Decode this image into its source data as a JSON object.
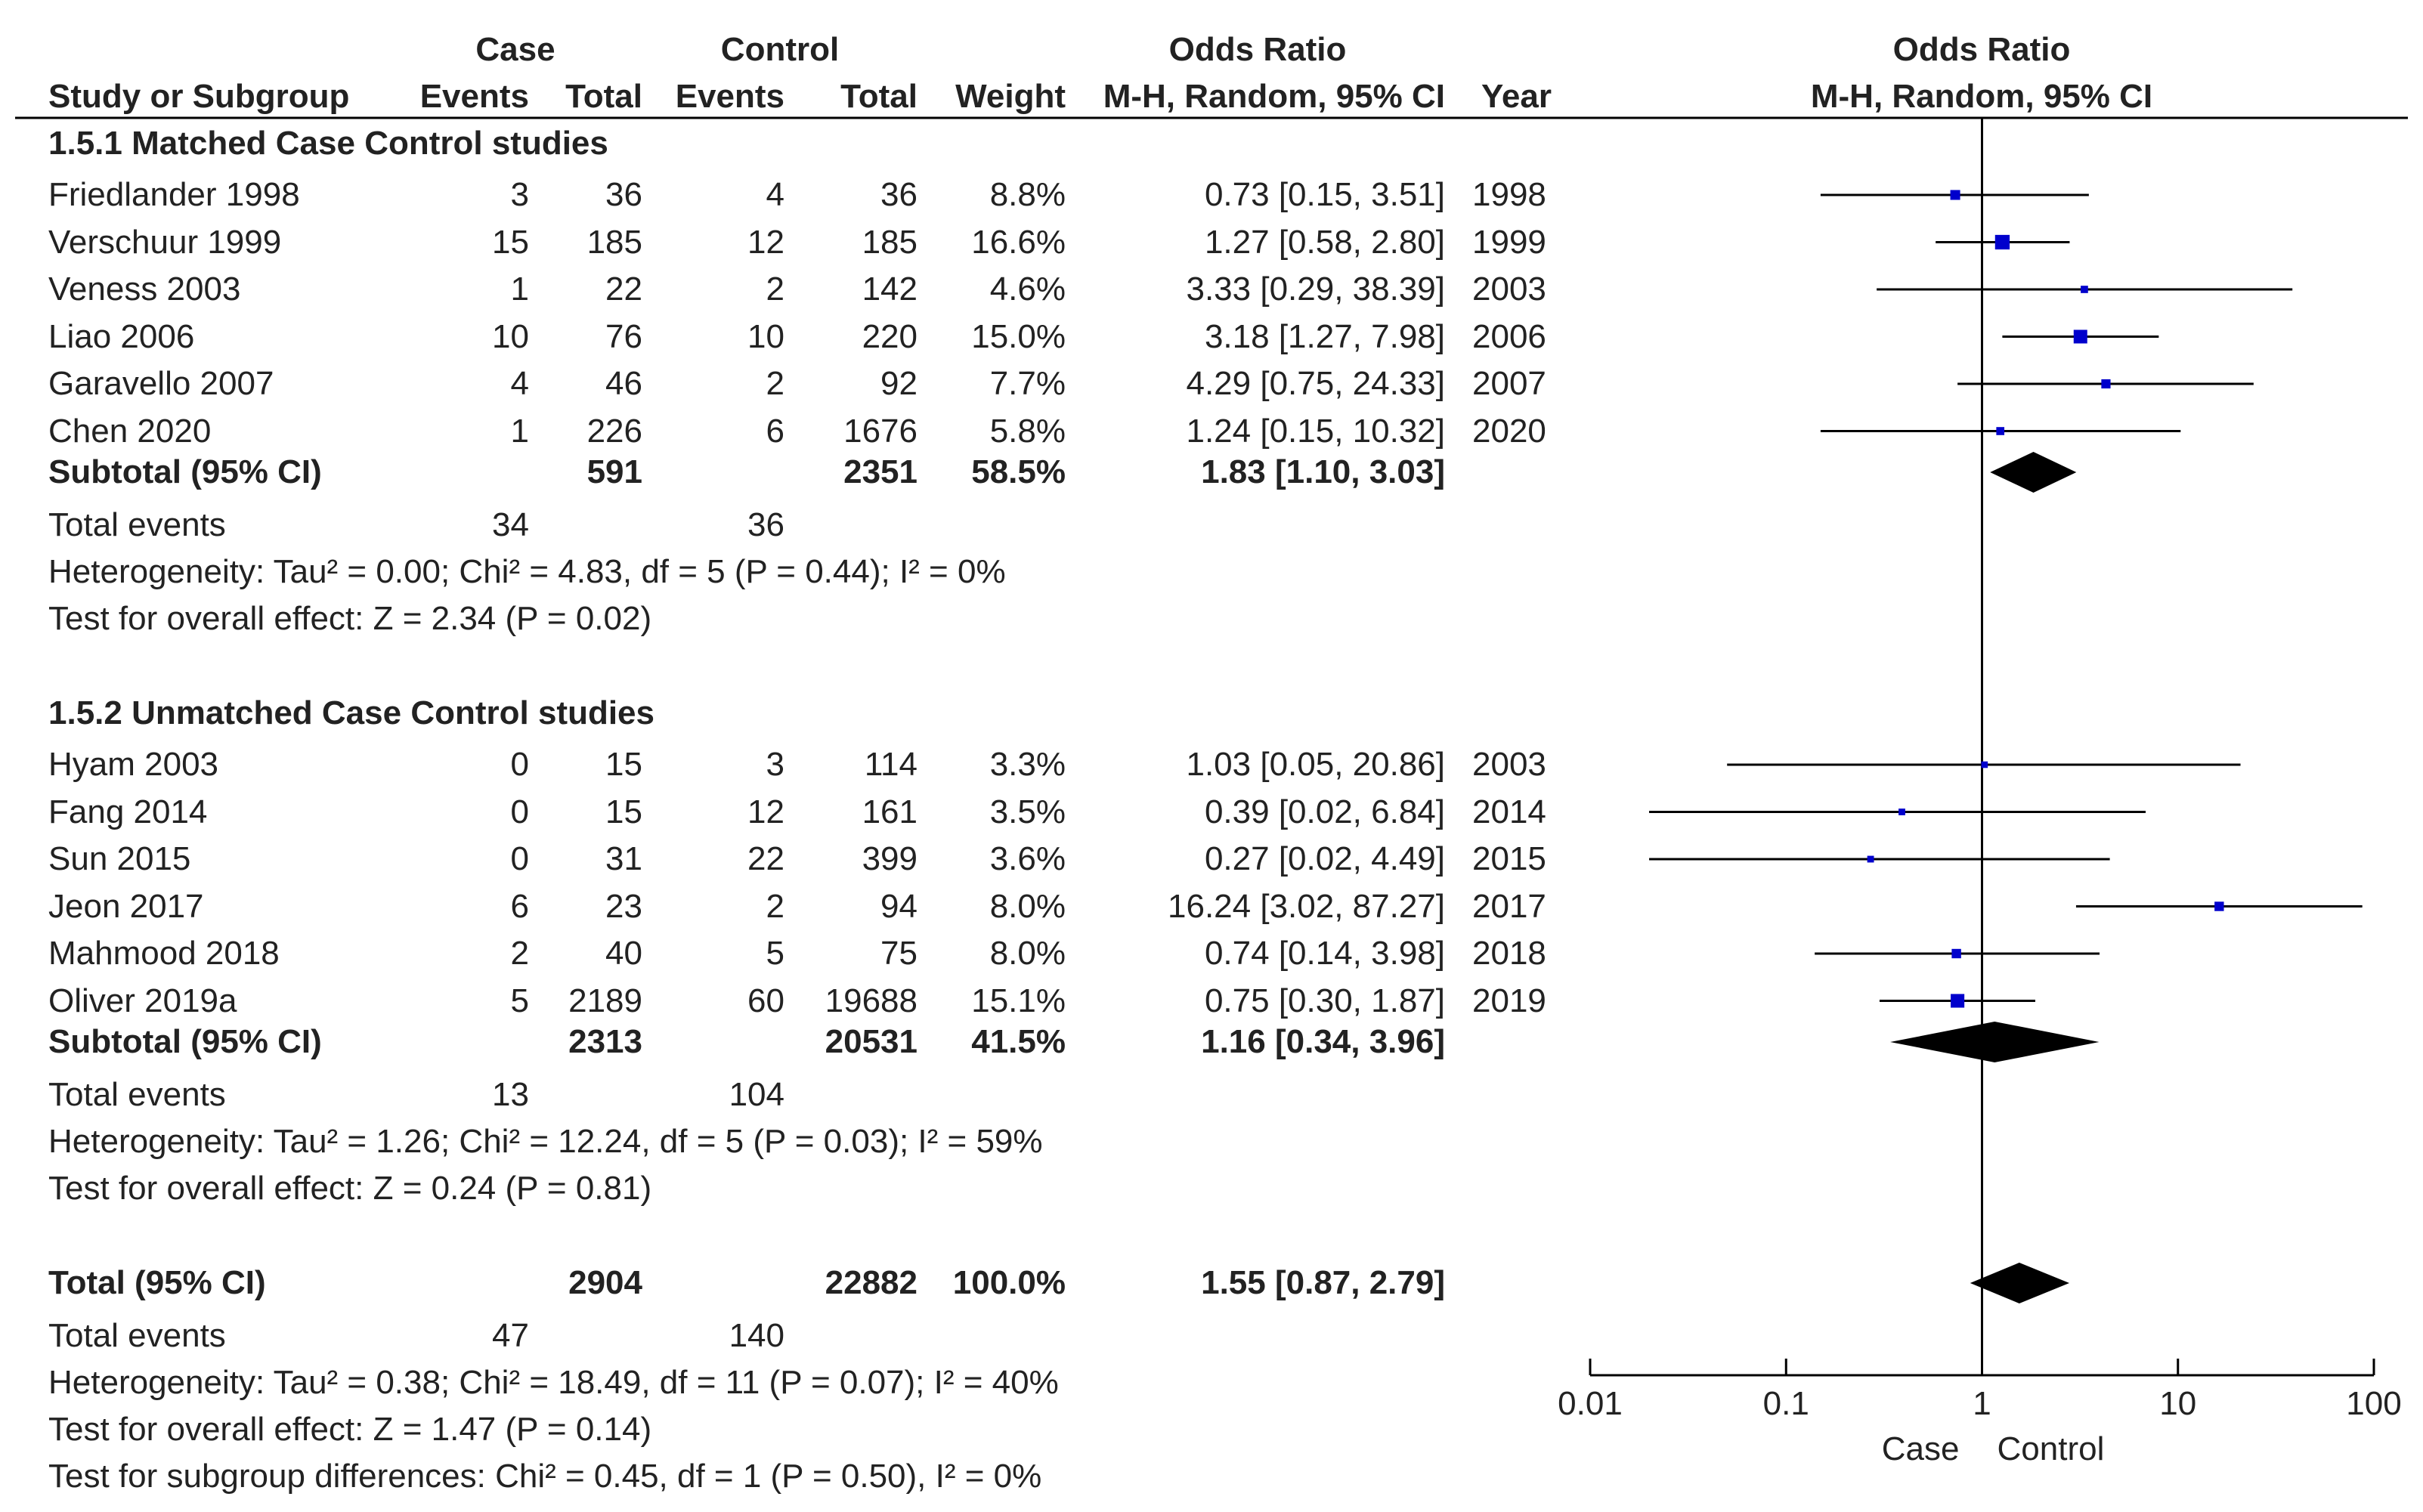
{
  "header": {
    "case": "Case",
    "control": "Control",
    "odds_ratio": "Odds Ratio",
    "odds_ratio_plot": "Odds Ratio",
    "study": "Study or Subgroup",
    "events": "Events",
    "total": "Total",
    "weight": "Weight",
    "method": "M-H, Random, 95% CI",
    "year": "Year",
    "method_plot": "M-H, Random, 95% CI"
  },
  "groups": [
    {
      "title": "1.5.1 Matched Case Control studies",
      "studies": [
        {
          "name": "Friedlander 1998",
          "case_events": "3",
          "case_total": "36",
          "ctrl_events": "4",
          "ctrl_total": "36",
          "weight": "8.8%",
          "ci": "0.73 [0.15, 3.51]",
          "year": "1998",
          "or": 0.73,
          "lo": 0.15,
          "hi": 3.51,
          "w": 8.8
        },
        {
          "name": "Verschuur 1999",
          "case_events": "15",
          "case_total": "185",
          "ctrl_events": "12",
          "ctrl_total": "185",
          "weight": "16.6%",
          "ci": "1.27 [0.58, 2.80]",
          "year": "1999",
          "or": 1.27,
          "lo": 0.58,
          "hi": 2.8,
          "w": 16.6
        },
        {
          "name": "Veness 2003",
          "case_events": "1",
          "case_total": "22",
          "ctrl_events": "2",
          "ctrl_total": "142",
          "weight": "4.6%",
          "ci": "3.33 [0.29, 38.39]",
          "year": "2003",
          "or": 3.33,
          "lo": 0.29,
          "hi": 38.39,
          "w": 4.6
        },
        {
          "name": "Liao 2006",
          "case_events": "10",
          "case_total": "76",
          "ctrl_events": "10",
          "ctrl_total": "220",
          "weight": "15.0%",
          "ci": "3.18 [1.27, 7.98]",
          "year": "2006",
          "or": 3.18,
          "lo": 1.27,
          "hi": 7.98,
          "w": 15.0
        },
        {
          "name": "Garavello 2007",
          "case_events": "4",
          "case_total": "46",
          "ctrl_events": "2",
          "ctrl_total": "92",
          "weight": "7.7%",
          "ci": "4.29 [0.75, 24.33]",
          "year": "2007",
          "or": 4.29,
          "lo": 0.75,
          "hi": 24.33,
          "w": 7.7
        },
        {
          "name": "Chen 2020",
          "case_events": "1",
          "case_total": "226",
          "ctrl_events": "6",
          "ctrl_total": "1676",
          "weight": "5.8%",
          "ci": "1.24 [0.15, 10.32]",
          "year": "2020",
          "or": 1.24,
          "lo": 0.15,
          "hi": 10.32,
          "w": 5.8
        }
      ],
      "subtotal": {
        "label": "Subtotal (95% CI)",
        "case_total": "591",
        "ctrl_total": "2351",
        "weight": "58.5%",
        "ci": "1.83 [1.10, 3.03]",
        "or": 1.83,
        "lo": 1.1,
        "hi": 3.03
      },
      "total_events": {
        "label": "Total events",
        "case": "34",
        "ctrl": "36"
      },
      "heterogeneity": "Heterogeneity: Tau² = 0.00; Chi² = 4.83, df = 5 (P = 0.44); I² = 0%",
      "overall": "Test for overall effect: Z = 2.34 (P = 0.02)"
    },
    {
      "title": "1.5.2 Unmatched Case Control studies",
      "studies": [
        {
          "name": "Hyam 2003",
          "case_events": "0",
          "case_total": "15",
          "ctrl_events": "3",
          "ctrl_total": "114",
          "weight": "3.3%",
          "ci": "1.03 [0.05, 20.86]",
          "year": "2003",
          "or": 1.03,
          "lo": 0.05,
          "hi": 20.86,
          "w": 3.3
        },
        {
          "name": "Fang 2014",
          "case_events": "0",
          "case_total": "15",
          "ctrl_events": "12",
          "ctrl_total": "161",
          "weight": "3.5%",
          "ci": "0.39 [0.02, 6.84]",
          "year": "2014",
          "or": 0.39,
          "lo": 0.02,
          "hi": 6.84,
          "w": 3.5
        },
        {
          "name": "Sun 2015",
          "case_events": "0",
          "case_total": "31",
          "ctrl_events": "22",
          "ctrl_total": "399",
          "weight": "3.6%",
          "ci": "0.27 [0.02, 4.49]",
          "year": "2015",
          "or": 0.27,
          "lo": 0.02,
          "hi": 4.49,
          "w": 3.6
        },
        {
          "name": "Jeon 2017",
          "case_events": "6",
          "case_total": "23",
          "ctrl_events": "2",
          "ctrl_total": "94",
          "weight": "8.0%",
          "ci": "16.24 [3.02, 87.27]",
          "year": "2017",
          "or": 16.24,
          "lo": 3.02,
          "hi": 87.27,
          "w": 8.0
        },
        {
          "name": "Mahmood 2018",
          "case_events": "2",
          "case_total": "40",
          "ctrl_events": "5",
          "ctrl_total": "75",
          "weight": "8.0%",
          "ci": "0.74 [0.14, 3.98]",
          "year": "2018",
          "or": 0.74,
          "lo": 0.14,
          "hi": 3.98,
          "w": 8.0
        },
        {
          "name": "Oliver 2019a",
          "case_events": "5",
          "case_total": "2189",
          "ctrl_events": "60",
          "ctrl_total": "19688",
          "weight": "15.1%",
          "ci": "0.75 [0.30, 1.87]",
          "year": "2019",
          "or": 0.75,
          "lo": 0.3,
          "hi": 1.87,
          "w": 15.1
        }
      ],
      "subtotal": {
        "label": "Subtotal (95% CI)",
        "case_total": "2313",
        "ctrl_total": "20531",
        "weight": "41.5%",
        "ci": "1.16 [0.34, 3.96]",
        "or": 1.16,
        "lo": 0.34,
        "hi": 3.96
      },
      "total_events": {
        "label": "Total events",
        "case": "13",
        "ctrl": "104"
      },
      "heterogeneity": "Heterogeneity: Tau² = 1.26; Chi² = 12.24, df = 5 (P = 0.03); I² = 59%",
      "overall": "Test for overall effect: Z = 0.24 (P = 0.81)"
    }
  ],
  "total": {
    "label": "Total (95% CI)",
    "case_total": "2904",
    "ctrl_total": "22882",
    "weight": "100.0%",
    "ci": "1.55 [0.87, 2.79]",
    "or": 1.55,
    "lo": 0.87,
    "hi": 2.79,
    "events_label": "Total events",
    "case_events": "47",
    "ctrl_events": "140",
    "heterogeneity": "Heterogeneity: Tau² = 0.38; Chi² = 18.49, df = 11 (P = 0.07); I² = 40%",
    "overall": "Test for overall effect: Z = 1.47 (P = 0.14)",
    "subgroup": "Test for subgroup differences: Chi² = 0.45, df = 1 (P = 0.50), I² = 0%"
  },
  "axis": {
    "ticks": [
      0.01,
      0.1,
      1,
      10,
      100
    ],
    "tick_labels": [
      "0.01",
      "0.1",
      "1",
      "10",
      "100"
    ],
    "left_label": "Case",
    "right_label": "Control"
  },
  "chart_data": {
    "type": "forest",
    "xscale": "log",
    "xlim": [
      0.01,
      100
    ],
    "reference_line": 1,
    "xlabel_left": "Case",
    "xlabel_right": "Control",
    "studies": [
      {
        "name": "Friedlander 1998",
        "or": 0.73,
        "lo": 0.15,
        "hi": 3.51,
        "weight": 8.8
      },
      {
        "name": "Verschuur 1999",
        "or": 1.27,
        "lo": 0.58,
        "hi": 2.8,
        "weight": 16.6
      },
      {
        "name": "Veness 2003",
        "or": 3.33,
        "lo": 0.29,
        "hi": 38.39,
        "weight": 4.6
      },
      {
        "name": "Liao 2006",
        "or": 3.18,
        "lo": 1.27,
        "hi": 7.98,
        "weight": 15.0
      },
      {
        "name": "Garavello 2007",
        "or": 4.29,
        "lo": 0.75,
        "hi": 24.33,
        "weight": 7.7
      },
      {
        "name": "Chen 2020",
        "or": 1.24,
        "lo": 0.15,
        "hi": 10.32,
        "weight": 5.8
      },
      {
        "name": "Hyam 2003",
        "or": 1.03,
        "lo": 0.05,
        "hi": 20.86,
        "weight": 3.3
      },
      {
        "name": "Fang 2014",
        "or": 0.39,
        "lo": 0.02,
        "hi": 6.84,
        "weight": 3.5
      },
      {
        "name": "Sun 2015",
        "or": 0.27,
        "lo": 0.02,
        "hi": 4.49,
        "weight": 3.6
      },
      {
        "name": "Jeon 2017",
        "or": 16.24,
        "lo": 3.02,
        "hi": 87.27,
        "weight": 8.0
      },
      {
        "name": "Mahmood 2018",
        "or": 0.74,
        "lo": 0.14,
        "hi": 3.98,
        "weight": 8.0
      },
      {
        "name": "Oliver 2019a",
        "or": 0.75,
        "lo": 0.3,
        "hi": 1.87,
        "weight": 15.1
      }
    ],
    "summaries": [
      {
        "name": "Subtotal 1.5.1",
        "or": 1.83,
        "lo": 1.1,
        "hi": 3.03
      },
      {
        "name": "Subtotal 1.5.2",
        "or": 1.16,
        "lo": 0.34,
        "hi": 3.96
      },
      {
        "name": "Total",
        "or": 1.55,
        "lo": 0.87,
        "hi": 2.79
      }
    ]
  },
  "colors": {
    "marker": "#0000cc",
    "line": "#000000",
    "text": "#222222"
  }
}
